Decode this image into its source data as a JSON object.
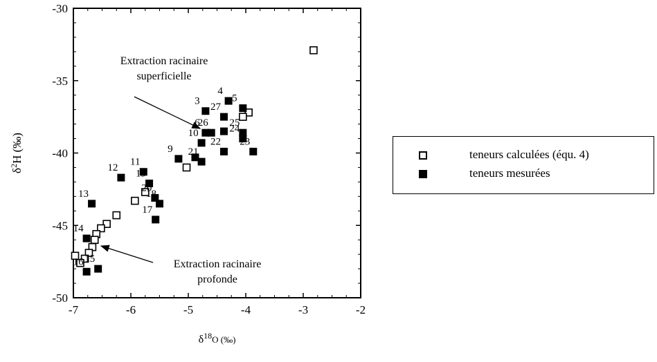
{
  "chart_data": {
    "type": "scatter",
    "ylabel_main": "δ",
    "ylabel_sup": "2",
    "ylabel_rest": "H (‰)",
    "xlabel_main": "δ",
    "xlabel_sup": "18",
    "xlabel_rest": "O (‰)",
    "xlim": [
      -7,
      -2
    ],
    "ylim": [
      -50,
      -30
    ],
    "xticks": [
      -7,
      -6,
      -5,
      -4,
      -3,
      -2
    ],
    "yticks": [
      -50,
      -45,
      -40,
      -35,
      -30
    ],
    "xtick_labels": [
      "-7",
      "-6",
      "-5",
      "-4",
      "-3",
      "-2"
    ],
    "ytick_labels": [
      "-50",
      "-45",
      "-40",
      "-35",
      "-30"
    ],
    "grid": false,
    "legend_position": "right",
    "series": [
      {
        "name": "teneurs calculées (équ. 4)",
        "marker": "open-square",
        "points": [
          {
            "x": -2.82,
            "y": -32.9
          },
          {
            "x": -3.95,
            "y": -37.2
          },
          {
            "x": -4.05,
            "y": -37.5
          },
          {
            "x": -5.03,
            "y": -41.0
          },
          {
            "x": -5.75,
            "y": -42.7
          },
          {
            "x": -5.93,
            "y": -43.3
          },
          {
            "x": -6.25,
            "y": -44.3
          },
          {
            "x": -6.42,
            "y": -44.9
          },
          {
            "x": -6.52,
            "y": -45.2
          },
          {
            "x": -6.6,
            "y": -45.6
          },
          {
            "x": -6.63,
            "y": -46.0
          },
          {
            "x": -6.67,
            "y": -46.5
          },
          {
            "x": -6.73,
            "y": -46.9
          },
          {
            "x": -6.8,
            "y": -47.3
          },
          {
            "x": -6.88,
            "y": -47.6
          },
          {
            "x": -6.97,
            "y": -47.1
          }
        ]
      },
      {
        "name": "teneurs mesurées",
        "marker": "filled-square",
        "points": [
          {
            "x": -4.7,
            "y": -37.1,
            "label": "3"
          },
          {
            "x": -4.3,
            "y": -36.4,
            "label": "4"
          },
          {
            "x": -4.05,
            "y": -36.9,
            "label": "5"
          },
          {
            "x": -4.7,
            "y": -38.6,
            "label": "6"
          },
          {
            "x": -4.6,
            "y": -38.6,
            "label": "26"
          },
          {
            "x": -4.38,
            "y": -37.5,
            "label": "27"
          },
          {
            "x": -4.38,
            "y": -38.5,
            "label": ""
          },
          {
            "x": -4.05,
            "y": -38.6,
            "label": "25"
          },
          {
            "x": -4.05,
            "y": -39.0,
            "label": "24"
          },
          {
            "x": -3.87,
            "y": -39.9,
            "label": "23"
          },
          {
            "x": -4.38,
            "y": -39.9,
            "label": "22"
          },
          {
            "x": -4.77,
            "y": -40.6,
            "label": "21"
          },
          {
            "x": -4.77,
            "y": -39.3,
            "label": "10"
          },
          {
            "x": -4.88,
            "y": -40.3,
            "label": ""
          },
          {
            "x": -5.17,
            "y": -40.4,
            "label": "9"
          },
          {
            "x": -5.78,
            "y": -41.3,
            "label": "11"
          },
          {
            "x": -6.17,
            "y": -41.7,
            "label": "12"
          },
          {
            "x": -5.68,
            "y": -42.1,
            "label": "19"
          },
          {
            "x": -5.58,
            "y": -43.1,
            "label": "20"
          },
          {
            "x": -5.5,
            "y": -43.5,
            "label": "18"
          },
          {
            "x": -5.57,
            "y": -44.6,
            "label": "17"
          },
          {
            "x": -6.68,
            "y": -43.5,
            "label": "13"
          },
          {
            "x": -6.77,
            "y": -45.9,
            "label": "14"
          },
          {
            "x": -6.57,
            "y": -48.0,
            "label": "15"
          },
          {
            "x": -6.77,
            "y": -48.2,
            "label": "16"
          }
        ]
      }
    ],
    "annotations": [
      {
        "line1": "Extraction racinaire",
        "line2": "superficielle"
      },
      {
        "line1": "Extraction racinaire",
        "line2": "profonde"
      }
    ]
  },
  "legend": {
    "items": [
      {
        "label": "teneurs calculées (équ. 4)"
      },
      {
        "label": "teneurs mesurées"
      }
    ]
  }
}
